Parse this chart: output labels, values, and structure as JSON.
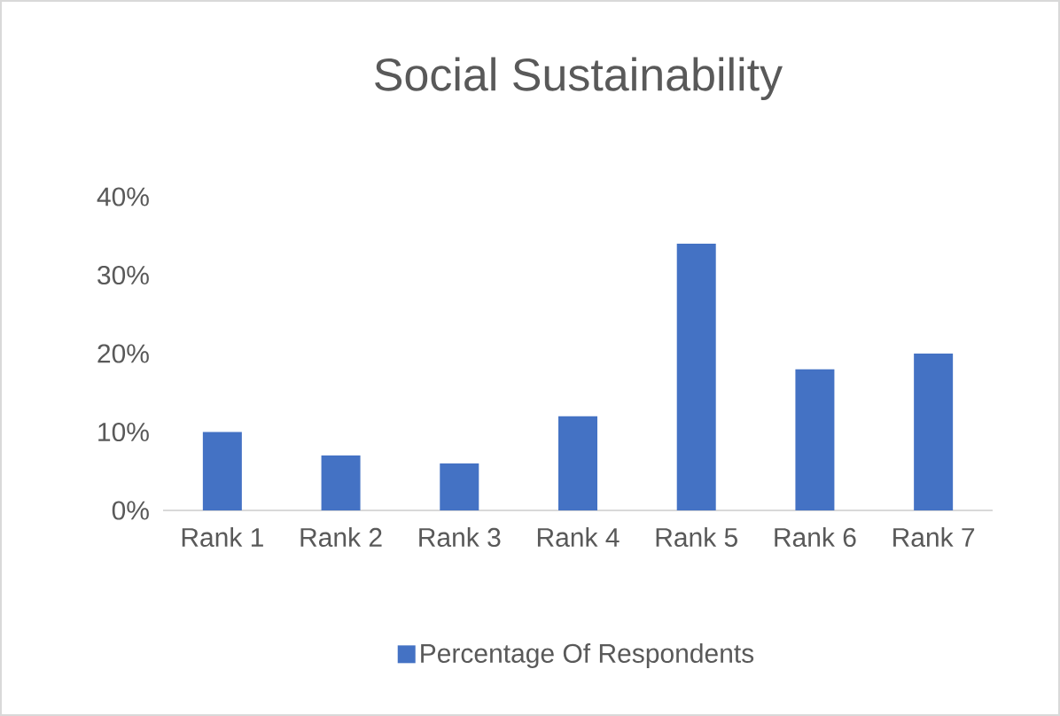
{
  "chart_data": {
    "type": "bar",
    "title": "Social Sustainability",
    "categories": [
      "Rank 1",
      "Rank 2",
      "Rank 3",
      "Rank 4",
      "Rank 5",
      "Rank 6",
      "Rank 7"
    ],
    "series": [
      {
        "name": "Percentage Of Respondents",
        "color": "#4472c4",
        "values": [
          10,
          7,
          6,
          12,
          34,
          18,
          20
        ]
      }
    ],
    "ylim": [
      0,
      40
    ],
    "yticks": [
      {
        "value": 0,
        "label": "0%"
      },
      {
        "value": 10,
        "label": "10%"
      },
      {
        "value": 20,
        "label": "20%"
      },
      {
        "value": 30,
        "label": "30%"
      },
      {
        "value": 40,
        "label": "40%"
      }
    ],
    "legend": "bottom"
  }
}
